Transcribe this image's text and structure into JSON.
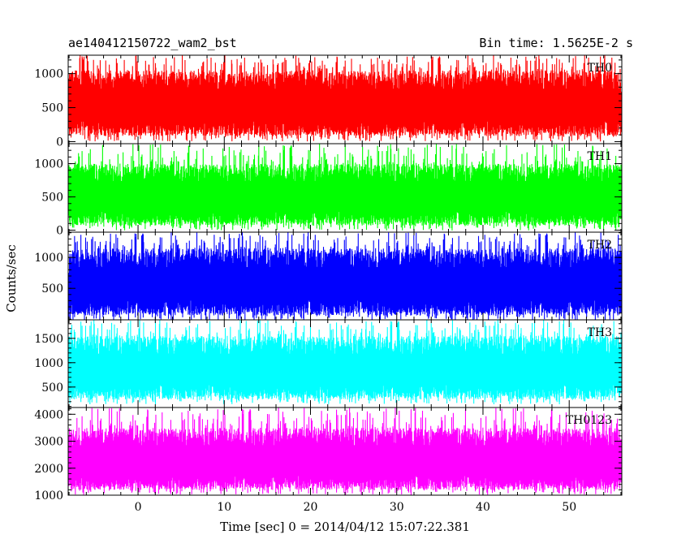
{
  "header": {
    "left_title": "ae140412150722_wam2_bst",
    "right_title": "Bin time: 1.5625E-2 s"
  },
  "chart_data": {
    "type": "line",
    "title": "ae140412150722_wam2_bst",
    "subtitle": "Bin time: 1.5625E-2 s",
    "xlabel": "Time [sec] 0 = 2014/04/12 15:07:22.381",
    "ylabel": "Counts/sec",
    "x_range": [
      -8.1,
      56.1
    ],
    "x_ticks": [
      0,
      10,
      20,
      30,
      40,
      50
    ],
    "x_tick_labels": [
      "0",
      "10",
      "20",
      "30",
      "40",
      "50"
    ],
    "data_x_range": [
      -8.0,
      56.0
    ],
    "bin_time": 0.015625,
    "grid": false,
    "panels": [
      {
        "label": "TH0",
        "color": "#ff0000",
        "ylim": [
          -30,
          1270
        ],
        "y_ticks": [
          0,
          500,
          1000
        ],
        "y_tick_labels": [
          "0",
          "500",
          "1000"
        ],
        "envelope": {
          "mean": 580,
          "low": 80,
          "high": 1050,
          "max": 1270
        }
      },
      {
        "label": "TH1",
        "color": "#00ff00",
        "ylim": [
          -30,
          1300
        ],
        "y_ticks": [
          0,
          500,
          1000
        ],
        "y_tick_labels": [
          "0",
          "500",
          "1000"
        ],
        "envelope": {
          "mean": 560,
          "low": 70,
          "high": 1000,
          "max": 1300
        }
      },
      {
        "label": "TH2",
        "color": "#0000ff",
        "ylim": [
          -10,
          1410
        ],
        "y_ticks": [
          500,
          1000
        ],
        "y_tick_labels": [
          "500",
          "1000"
        ],
        "envelope": {
          "mean": 620,
          "low": 60,
          "high": 1150,
          "max": 1410
        }
      },
      {
        "label": "TH3",
        "color": "#00ffff",
        "ylim": [
          80,
          1880
        ],
        "y_ticks": [
          500,
          1000,
          1500
        ],
        "y_tick_labels": [
          "500",
          "1000",
          "1500"
        ],
        "envelope": {
          "mean": 900,
          "low": 250,
          "high": 1550,
          "max": 1880
        }
      },
      {
        "label": "TH0123",
        "color": "#ff00ff",
        "ylim": [
          1000,
          4250
        ],
        "y_ticks": [
          1000,
          2000,
          3000,
          4000
        ],
        "y_tick_labels": [
          "1000",
          "2000",
          "3000",
          "4000"
        ],
        "envelope": {
          "mean": 2500,
          "low": 1200,
          "high": 3500,
          "max": 4250
        }
      }
    ]
  }
}
